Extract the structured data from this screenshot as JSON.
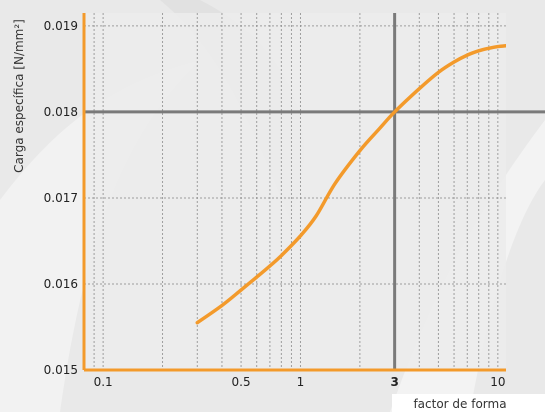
{
  "chart_data": {
    "type": "line",
    "xscale": "log",
    "xlim": [
      0.08,
      11
    ],
    "ylim": [
      0.015,
      0.01915
    ],
    "xlabel": "factor de forma",
    "ylabel": "Carga específica [N/mm²]",
    "grid": true,
    "x_ticks": [
      0.1,
      0.5,
      1,
      3,
      10
    ],
    "x_tick_labels": [
      "0.1",
      "0.5",
      "1",
      "3",
      "10"
    ],
    "y_ticks": [
      0.015,
      0.016,
      0.017,
      0.018,
      0.019
    ],
    "y_tick_labels": [
      "0.015",
      "0.016",
      "0.017",
      "0.018",
      "0.019"
    ],
    "reference": {
      "x": 3,
      "y": 0.018
    },
    "series": [
      {
        "color": "#f39a2b",
        "x": [
          0.3,
          0.4,
          0.5,
          0.6,
          0.7,
          0.8,
          1.0,
          1.2,
          1.5,
          2.0,
          2.5,
          3.0,
          4.0,
          5.0,
          6.0,
          7.0,
          8.0,
          9.0,
          10.0,
          11.0
        ],
        "y": [
          0.01555,
          0.01575,
          0.01593,
          0.01608,
          0.01621,
          0.01633,
          0.01656,
          0.01679,
          0.01717,
          0.01755,
          0.0178,
          0.018,
          0.01827,
          0.01846,
          0.01858,
          0.01866,
          0.01871,
          0.01874,
          0.01876,
          0.01877
        ]
      }
    ],
    "colors": {
      "background": "#e9e9e9",
      "plot_background": "#ececec",
      "frame": "#f39a2b",
      "grid": "#8a8a8a",
      "reference_lines": "#7a7a7a"
    }
  }
}
